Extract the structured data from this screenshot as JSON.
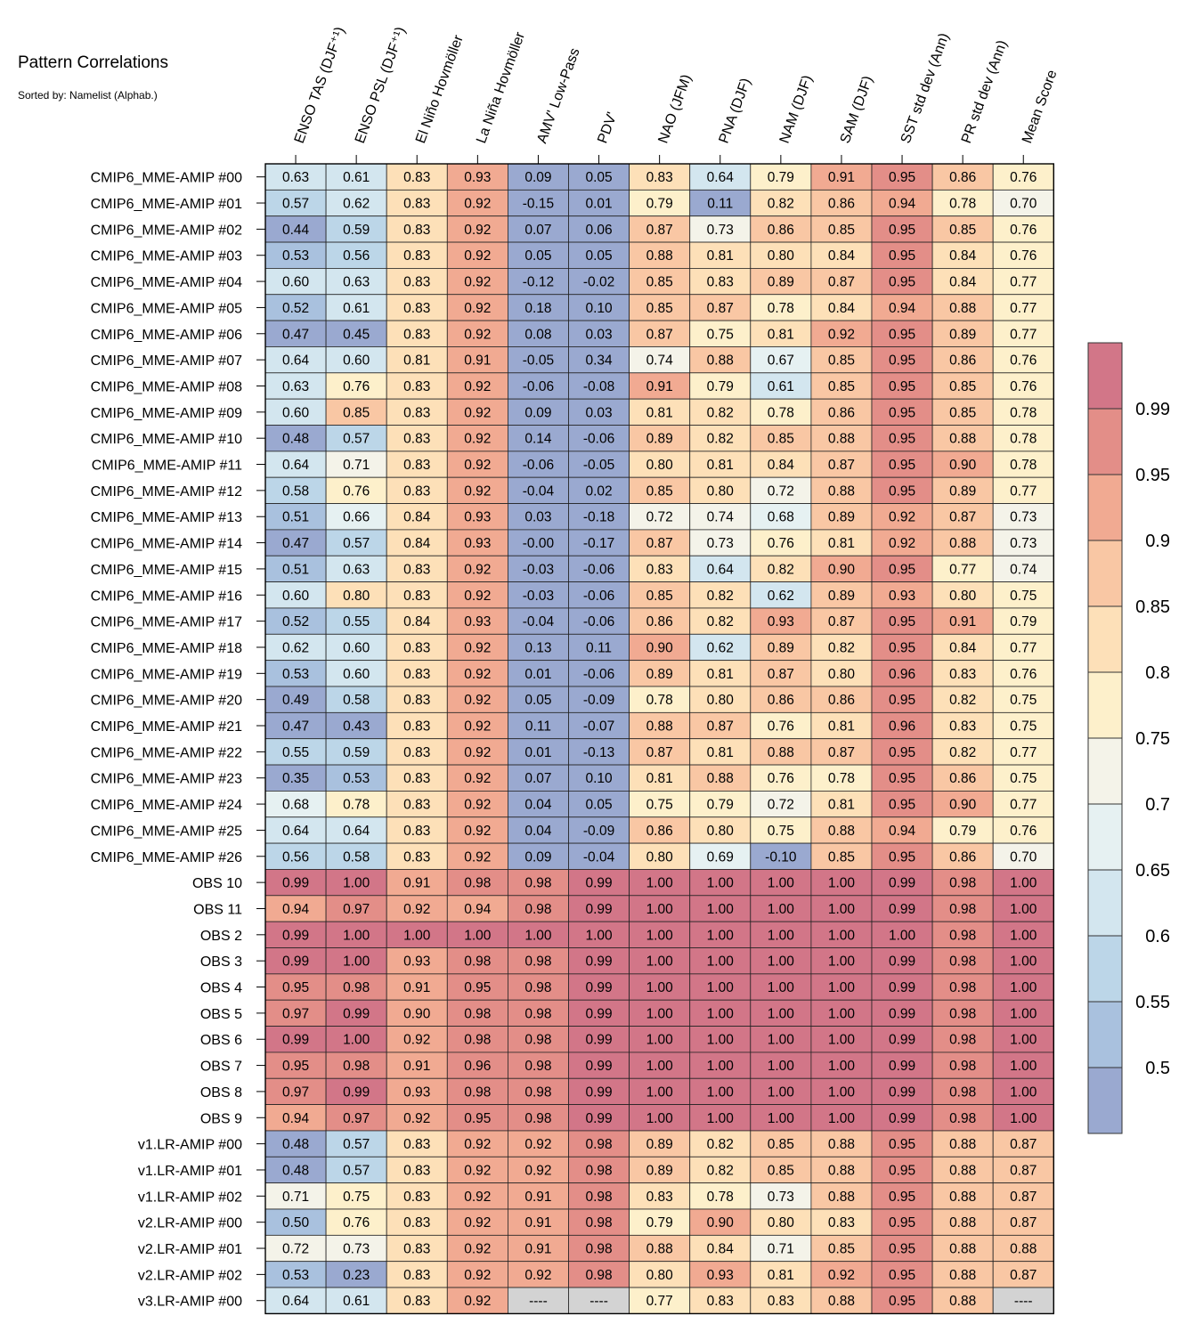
{
  "title": "Pattern Correlations",
  "subtitle": "Sorted by: Namelist (Alphab.)",
  "chart_data": {
    "type": "heatmap",
    "columns": [
      "ENSO TAS (DJF⁺¹)",
      "ENSO PSL (DJF⁺¹)",
      "El Niño Hovmöller",
      "La Niña Hovmöller",
      "AMV' Low-Pass",
      "PDV'",
      "NAO (JFM)",
      "PNA (DJF)",
      "NAM (DJF)",
      "SAM (DJF)",
      "SST std dev (Ann)",
      "PR std dev (Ann)",
      "Mean Score"
    ],
    "rows": [
      "CMIP6_MME-AMIP  #00",
      "CMIP6_MME-AMIP  #01",
      "CMIP6_MME-AMIP  #02",
      "CMIP6_MME-AMIP  #03",
      "CMIP6_MME-AMIP  #04",
      "CMIP6_MME-AMIP  #05",
      "CMIP6_MME-AMIP  #06",
      "CMIP6_MME-AMIP  #07",
      "CMIP6_MME-AMIP  #08",
      "CMIP6_MME-AMIP  #09",
      "CMIP6_MME-AMIP  #10",
      "CMIP6_MME-AMIP  #11",
      "CMIP6_MME-AMIP  #12",
      "CMIP6_MME-AMIP  #13",
      "CMIP6_MME-AMIP  #14",
      "CMIP6_MME-AMIP  #15",
      "CMIP6_MME-AMIP  #16",
      "CMIP6_MME-AMIP  #17",
      "CMIP6_MME-AMIP  #18",
      "CMIP6_MME-AMIP  #19",
      "CMIP6_MME-AMIP  #20",
      "CMIP6_MME-AMIP  #21",
      "CMIP6_MME-AMIP  #22",
      "CMIP6_MME-AMIP  #23",
      "CMIP6_MME-AMIP  #24",
      "CMIP6_MME-AMIP  #25",
      "CMIP6_MME-AMIP  #26",
      "OBS 10",
      "OBS 11",
      "OBS 2",
      "OBS 3",
      "OBS 4",
      "OBS 5",
      "OBS 6",
      "OBS 7",
      "OBS 8",
      "OBS 9",
      "v1.LR-AMIP  #00",
      "v1.LR-AMIP  #01",
      "v1.LR-AMIP  #02",
      "v2.LR-AMIP  #00",
      "v2.LR-AMIP  #01",
      "v2.LR-AMIP  #02",
      "v3.LR-AMIP  #00"
    ],
    "values": [
      [
        "0.63",
        "0.61",
        "0.83",
        "0.93",
        "0.09",
        "0.05",
        "0.83",
        "0.64",
        "0.79",
        "0.91",
        "0.95",
        "0.86",
        "0.76"
      ],
      [
        "0.57",
        "0.62",
        "0.83",
        "0.92",
        "-0.15",
        "0.01",
        "0.79",
        "0.11",
        "0.82",
        "0.86",
        "0.94",
        "0.78",
        "0.70"
      ],
      [
        "0.44",
        "0.59",
        "0.83",
        "0.92",
        "0.07",
        "0.06",
        "0.87",
        "0.73",
        "0.86",
        "0.85",
        "0.95",
        "0.85",
        "0.76"
      ],
      [
        "0.53",
        "0.56",
        "0.83",
        "0.92",
        "0.05",
        "0.05",
        "0.88",
        "0.81",
        "0.80",
        "0.84",
        "0.95",
        "0.84",
        "0.76"
      ],
      [
        "0.60",
        "0.63",
        "0.83",
        "0.92",
        "-0.12",
        "-0.02",
        "0.85",
        "0.83",
        "0.89",
        "0.87",
        "0.95",
        "0.84",
        "0.77"
      ],
      [
        "0.52",
        "0.61",
        "0.83",
        "0.92",
        "0.18",
        "0.10",
        "0.85",
        "0.87",
        "0.78",
        "0.84",
        "0.94",
        "0.88",
        "0.77"
      ],
      [
        "0.47",
        "0.45",
        "0.83",
        "0.92",
        "0.08",
        "0.03",
        "0.87",
        "0.75",
        "0.81",
        "0.92",
        "0.95",
        "0.89",
        "0.77"
      ],
      [
        "0.64",
        "0.60",
        "0.81",
        "0.91",
        "-0.05",
        "0.34",
        "0.74",
        "0.88",
        "0.67",
        "0.85",
        "0.95",
        "0.86",
        "0.76"
      ],
      [
        "0.63",
        "0.76",
        "0.83",
        "0.92",
        "-0.06",
        "-0.08",
        "0.91",
        "0.79",
        "0.61",
        "0.85",
        "0.95",
        "0.85",
        "0.76"
      ],
      [
        "0.60",
        "0.85",
        "0.83",
        "0.92",
        "0.09",
        "0.03",
        "0.81",
        "0.82",
        "0.78",
        "0.86",
        "0.95",
        "0.85",
        "0.78"
      ],
      [
        "0.48",
        "0.57",
        "0.83",
        "0.92",
        "0.14",
        "-0.06",
        "0.89",
        "0.82",
        "0.85",
        "0.88",
        "0.95",
        "0.88",
        "0.78"
      ],
      [
        "0.64",
        "0.71",
        "0.83",
        "0.92",
        "-0.06",
        "-0.05",
        "0.80",
        "0.81",
        "0.84",
        "0.87",
        "0.95",
        "0.90",
        "0.78"
      ],
      [
        "0.58",
        "0.76",
        "0.83",
        "0.92",
        "-0.04",
        "0.02",
        "0.85",
        "0.80",
        "0.72",
        "0.88",
        "0.95",
        "0.89",
        "0.77"
      ],
      [
        "0.51",
        "0.66",
        "0.84",
        "0.93",
        "0.03",
        "-0.18",
        "0.72",
        "0.74",
        "0.68",
        "0.89",
        "0.92",
        "0.87",
        "0.73"
      ],
      [
        "0.47",
        "0.57",
        "0.84",
        "0.93",
        "-0.00",
        "-0.17",
        "0.87",
        "0.73",
        "0.76",
        "0.81",
        "0.92",
        "0.88",
        "0.73"
      ],
      [
        "0.51",
        "0.63",
        "0.83",
        "0.92",
        "-0.03",
        "-0.06",
        "0.83",
        "0.64",
        "0.82",
        "0.90",
        "0.95",
        "0.77",
        "0.74"
      ],
      [
        "0.60",
        "0.80",
        "0.83",
        "0.92",
        "-0.03",
        "-0.06",
        "0.85",
        "0.82",
        "0.62",
        "0.89",
        "0.93",
        "0.80",
        "0.75"
      ],
      [
        "0.52",
        "0.55",
        "0.84",
        "0.93",
        "-0.04",
        "-0.06",
        "0.86",
        "0.82",
        "0.93",
        "0.87",
        "0.95",
        "0.91",
        "0.79"
      ],
      [
        "0.62",
        "0.60",
        "0.83",
        "0.92",
        "0.13",
        "0.11",
        "0.90",
        "0.62",
        "0.89",
        "0.82",
        "0.95",
        "0.84",
        "0.77"
      ],
      [
        "0.53",
        "0.60",
        "0.83",
        "0.92",
        "0.01",
        "-0.06",
        "0.89",
        "0.81",
        "0.87",
        "0.80",
        "0.96",
        "0.83",
        "0.76"
      ],
      [
        "0.49",
        "0.58",
        "0.83",
        "0.92",
        "0.05",
        "-0.09",
        "0.78",
        "0.80",
        "0.86",
        "0.86",
        "0.95",
        "0.82",
        "0.75"
      ],
      [
        "0.47",
        "0.43",
        "0.83",
        "0.92",
        "0.11",
        "-0.07",
        "0.88",
        "0.87",
        "0.76",
        "0.81",
        "0.96",
        "0.83",
        "0.75"
      ],
      [
        "0.55",
        "0.59",
        "0.83",
        "0.92",
        "0.01",
        "-0.13",
        "0.87",
        "0.81",
        "0.88",
        "0.87",
        "0.95",
        "0.82",
        "0.77"
      ],
      [
        "0.35",
        "0.53",
        "0.83",
        "0.92",
        "0.07",
        "0.10",
        "0.81",
        "0.88",
        "0.76",
        "0.78",
        "0.95",
        "0.86",
        "0.75"
      ],
      [
        "0.68",
        "0.78",
        "0.83",
        "0.92",
        "0.04",
        "0.05",
        "0.75",
        "0.79",
        "0.72",
        "0.81",
        "0.95",
        "0.90",
        "0.77"
      ],
      [
        "0.64",
        "0.64",
        "0.83",
        "0.92",
        "0.04",
        "-0.09",
        "0.86",
        "0.80",
        "0.75",
        "0.88",
        "0.94",
        "0.79",
        "0.76"
      ],
      [
        "0.56",
        "0.58",
        "0.83",
        "0.92",
        "0.09",
        "-0.04",
        "0.80",
        "0.69",
        "-0.10",
        "0.85",
        "0.95",
        "0.86",
        "0.70"
      ],
      [
        "0.99",
        "1.00",
        "0.91",
        "0.98",
        "0.98",
        "0.99",
        "1.00",
        "1.00",
        "1.00",
        "1.00",
        "0.99",
        "0.98",
        "1.00"
      ],
      [
        "0.94",
        "0.97",
        "0.92",
        "0.94",
        "0.98",
        "0.99",
        "1.00",
        "1.00",
        "1.00",
        "1.00",
        "0.99",
        "0.98",
        "1.00"
      ],
      [
        "0.99",
        "1.00",
        "1.00",
        "1.00",
        "1.00",
        "1.00",
        "1.00",
        "1.00",
        "1.00",
        "1.00",
        "1.00",
        "0.98",
        "1.00"
      ],
      [
        "0.99",
        "1.00",
        "0.93",
        "0.98",
        "0.98",
        "0.99",
        "1.00",
        "1.00",
        "1.00",
        "1.00",
        "0.99",
        "0.98",
        "1.00"
      ],
      [
        "0.95",
        "0.98",
        "0.91",
        "0.95",
        "0.98",
        "0.99",
        "1.00",
        "1.00",
        "1.00",
        "1.00",
        "0.99",
        "0.98",
        "1.00"
      ],
      [
        "0.97",
        "0.99",
        "0.90",
        "0.98",
        "0.98",
        "0.99",
        "1.00",
        "1.00",
        "1.00",
        "1.00",
        "0.99",
        "0.98",
        "1.00"
      ],
      [
        "0.99",
        "1.00",
        "0.92",
        "0.98",
        "0.98",
        "0.99",
        "1.00",
        "1.00",
        "1.00",
        "1.00",
        "0.99",
        "0.98",
        "1.00"
      ],
      [
        "0.95",
        "0.98",
        "0.91",
        "0.96",
        "0.98",
        "0.99",
        "1.00",
        "1.00",
        "1.00",
        "1.00",
        "0.99",
        "0.98",
        "1.00"
      ],
      [
        "0.97",
        "0.99",
        "0.93",
        "0.98",
        "0.98",
        "0.99",
        "1.00",
        "1.00",
        "1.00",
        "1.00",
        "0.99",
        "0.98",
        "1.00"
      ],
      [
        "0.94",
        "0.97",
        "0.92",
        "0.95",
        "0.98",
        "0.99",
        "1.00",
        "1.00",
        "1.00",
        "1.00",
        "0.99",
        "0.98",
        "1.00"
      ],
      [
        "0.48",
        "0.57",
        "0.83",
        "0.92",
        "0.92",
        "0.98",
        "0.89",
        "0.82",
        "0.85",
        "0.88",
        "0.95",
        "0.88",
        "0.87"
      ],
      [
        "0.48",
        "0.57",
        "0.83",
        "0.92",
        "0.92",
        "0.98",
        "0.89",
        "0.82",
        "0.85",
        "0.88",
        "0.95",
        "0.88",
        "0.87"
      ],
      [
        "0.71",
        "0.75",
        "0.83",
        "0.92",
        "0.91",
        "0.98",
        "0.83",
        "0.78",
        "0.73",
        "0.88",
        "0.95",
        "0.88",
        "0.87"
      ],
      [
        "0.50",
        "0.76",
        "0.83",
        "0.92",
        "0.91",
        "0.98",
        "0.79",
        "0.90",
        "0.80",
        "0.83",
        "0.95",
        "0.88",
        "0.87"
      ],
      [
        "0.72",
        "0.73",
        "0.83",
        "0.92",
        "0.91",
        "0.98",
        "0.88",
        "0.84",
        "0.71",
        "0.85",
        "0.95",
        "0.88",
        "0.88"
      ],
      [
        "0.53",
        "0.23",
        "0.83",
        "0.92",
        "0.92",
        "0.98",
        "0.80",
        "0.93",
        "0.81",
        "0.92",
        "0.95",
        "0.88",
        "0.87"
      ],
      [
        "0.64",
        "0.61",
        "0.83",
        "0.92",
        "----",
        "----",
        "0.77",
        "0.83",
        "0.83",
        "0.88",
        "0.95",
        "0.88",
        "----"
      ]
    ],
    "missing_label": "----",
    "missing_color": "#d3d3d3",
    "colorbar": {
      "levels": [
        0.5,
        0.55,
        0.6,
        0.65,
        0.7,
        0.75,
        0.8,
        0.85,
        0.9,
        0.95,
        0.99
      ],
      "tick_labels": [
        "0.5",
        "0.55",
        "0.6",
        "0.65",
        "0.7",
        "0.75",
        "0.8",
        "0.85",
        "0.9",
        "0.95",
        "0.99"
      ],
      "colors": [
        "#9aa9d0",
        "#a9c1de",
        "#bcd6e8",
        "#d3e6ef",
        "#e6f1f2",
        "#f4f3e9",
        "#fdf0cb",
        "#fde0b8",
        "#f9c7a4",
        "#f1aa92",
        "#e38e88",
        "#d27688"
      ]
    }
  }
}
